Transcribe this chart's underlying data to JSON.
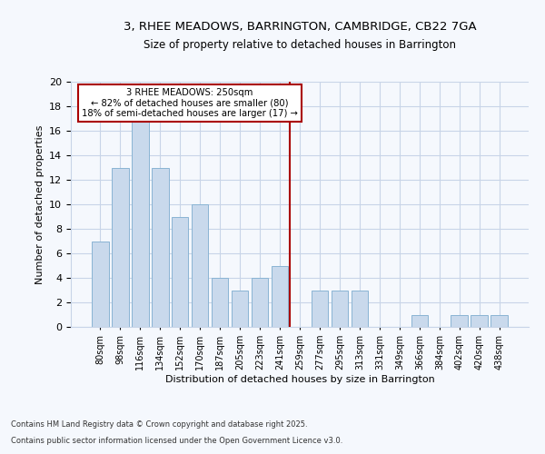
{
  "title": "3, RHEE MEADOWS, BARRINGTON, CAMBRIDGE, CB22 7GA",
  "subtitle": "Size of property relative to detached houses in Barrington",
  "xlabel": "Distribution of detached houses by size in Barrington",
  "ylabel": "Number of detached properties",
  "bar_color": "#c9d9ec",
  "bar_edgecolor": "#8ab4d4",
  "background_color": "#f5f8fd",
  "grid_color": "#c8d4e8",
  "categories": [
    "80sqm",
    "98sqm",
    "116sqm",
    "134sqm",
    "152sqm",
    "170sqm",
    "187sqm",
    "205sqm",
    "223sqm",
    "241sqm",
    "259sqm",
    "277sqm",
    "295sqm",
    "313sqm",
    "331sqm",
    "349sqm",
    "366sqm",
    "384sqm",
    "402sqm",
    "420sqm",
    "438sqm"
  ],
  "values": [
    7,
    13,
    17,
    13,
    9,
    10,
    4,
    3,
    4,
    5,
    0,
    3,
    3,
    3,
    0,
    0,
    1,
    0,
    1,
    1,
    1
  ],
  "ylim": [
    0,
    20
  ],
  "yticks": [
    0,
    2,
    4,
    6,
    8,
    10,
    12,
    14,
    16,
    18,
    20
  ],
  "vline_x": 9.5,
  "vline_color": "#aa0000",
  "annotation_text": "3 RHEE MEADOWS: 250sqm\n← 82% of detached houses are smaller (80)\n18% of semi-detached houses are larger (17) →",
  "annotation_box_edgecolor": "#aa0000",
  "footer1": "Contains HM Land Registry data © Crown copyright and database right 2025.",
  "footer2": "Contains public sector information licensed under the Open Government Licence v3.0."
}
